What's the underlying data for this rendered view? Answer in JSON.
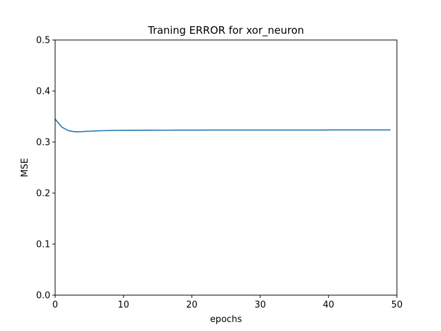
{
  "chart_data": {
    "type": "line",
    "title": "Traning ERROR for xor_neuron",
    "xlabel": "epochs",
    "ylabel": "MSE",
    "xlim": [
      0,
      50
    ],
    "ylim": [
      0,
      0.5
    ],
    "xticks": [
      0,
      10,
      20,
      30,
      40,
      50
    ],
    "yticks": [
      0.0,
      0.1,
      0.2,
      0.3,
      0.4,
      0.5
    ],
    "xtick_labels": [
      "0",
      "10",
      "20",
      "30",
      "40",
      "50"
    ],
    "ytick_labels": [
      "0.0",
      "0.1",
      "0.2",
      "0.3",
      "0.4",
      "0.5"
    ],
    "grid": false,
    "series": [
      {
        "color": "#1f77b4",
        "x": [
          0,
          1,
          2,
          3,
          4,
          5,
          6,
          7,
          8,
          9,
          10,
          11,
          12,
          13,
          14,
          15,
          16,
          17,
          18,
          19,
          20,
          21,
          22,
          23,
          24,
          25,
          26,
          27,
          28,
          29,
          30,
          31,
          32,
          33,
          34,
          35,
          36,
          37,
          38,
          39,
          40,
          41,
          42,
          43,
          44,
          45,
          46,
          47,
          48,
          49
        ],
        "y": [
          0.345,
          0.329,
          0.322,
          0.32,
          0.3205,
          0.3213,
          0.3219,
          0.3223,
          0.3226,
          0.3228,
          0.3229,
          0.323,
          0.3231,
          0.3232,
          0.3232,
          0.3233,
          0.3233,
          0.3233,
          0.3234,
          0.3234,
          0.3234,
          0.3234,
          0.3235,
          0.3235,
          0.3235,
          0.3235,
          0.3235,
          0.3235,
          0.3235,
          0.3236,
          0.3236,
          0.3236,
          0.3236,
          0.3236,
          0.3236,
          0.3236,
          0.3236,
          0.3236,
          0.3236,
          0.3236,
          0.3237,
          0.3237,
          0.3237,
          0.3237,
          0.3237,
          0.3237,
          0.3237,
          0.3237,
          0.3237,
          0.3237
        ]
      }
    ]
  }
}
